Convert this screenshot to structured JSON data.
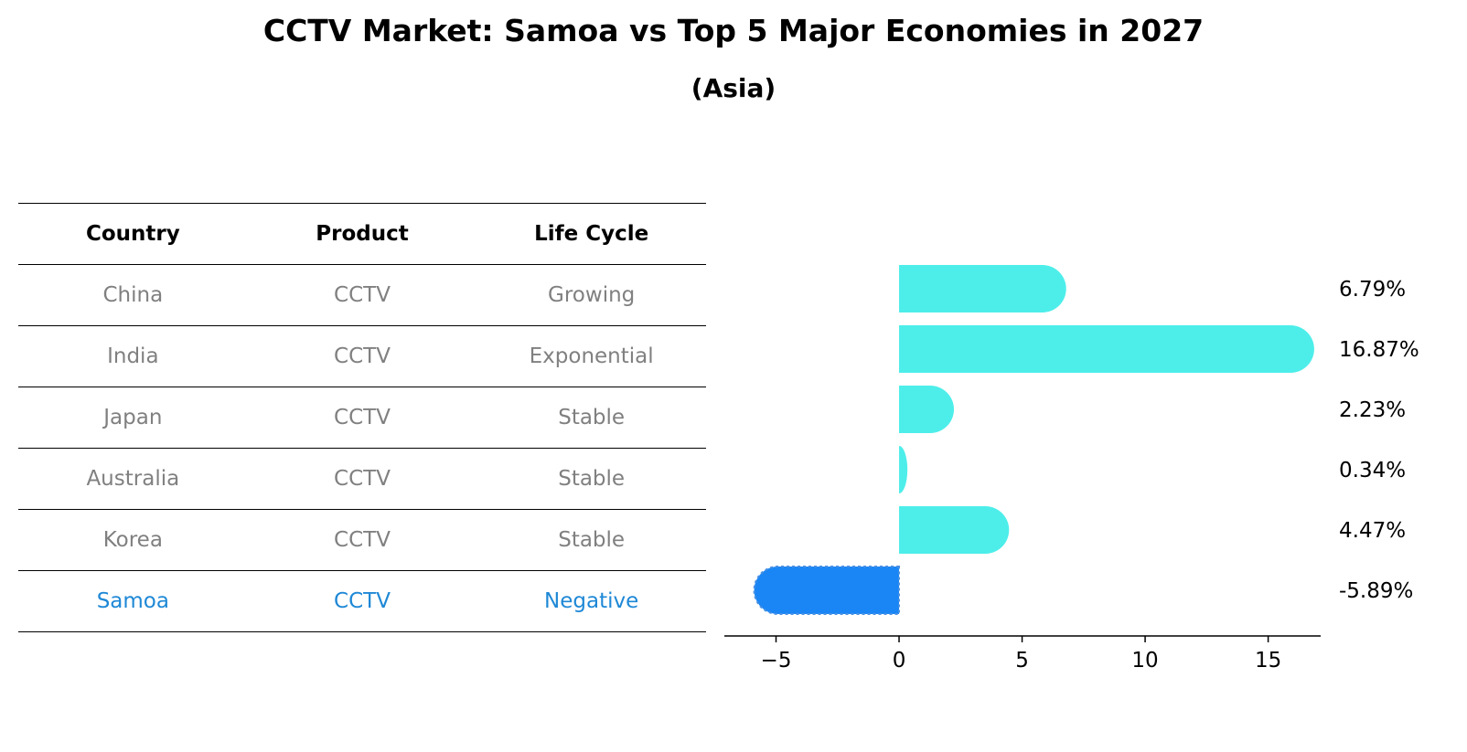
{
  "header": {
    "title": "CCTV Market: Samoa vs Top 5 Major Economies in 2027",
    "subtitle": "(Asia)"
  },
  "table": {
    "columns": [
      "Country",
      "Product",
      "Life Cycle"
    ],
    "rows": [
      [
        "China",
        "CCTV",
        "Growing"
      ],
      [
        "India",
        "CCTV",
        "Exponential"
      ],
      [
        "Japan",
        "CCTV",
        "Stable"
      ],
      [
        "Australia",
        "CCTV",
        "Stable"
      ],
      [
        "Korea",
        "CCTV",
        "Stable"
      ],
      [
        "Samoa",
        "CCTV",
        "Negative"
      ]
    ],
    "highlight_color": "#1e88d6",
    "text_color": "#808080"
  },
  "chart_data": {
    "type": "bar",
    "orientation": "horizontal",
    "title": "CCTV Market: Samoa vs Top 5 Major Economies in 2027",
    "subtitle": "(Asia)",
    "categories": [
      "China",
      "India",
      "Japan",
      "Australia",
      "Korea",
      "Samoa"
    ],
    "values": [
      6.79,
      16.87,
      2.23,
      0.34,
      4.47,
      -5.89
    ],
    "value_labels": [
      "6.79%",
      "16.87%",
      "2.23%",
      "0.34%",
      "4.47%",
      "-5.89%"
    ],
    "xlim": [
      -7.1,
      18.1
    ],
    "xticks": [
      -5,
      0,
      5,
      10,
      15
    ],
    "xtick_labels": [
      "−5",
      "0",
      "5",
      "10",
      "15"
    ],
    "xlabel": "",
    "ylabel": "",
    "colors": {
      "positive": "#4deeea",
      "negative": "#1a86f5"
    }
  }
}
